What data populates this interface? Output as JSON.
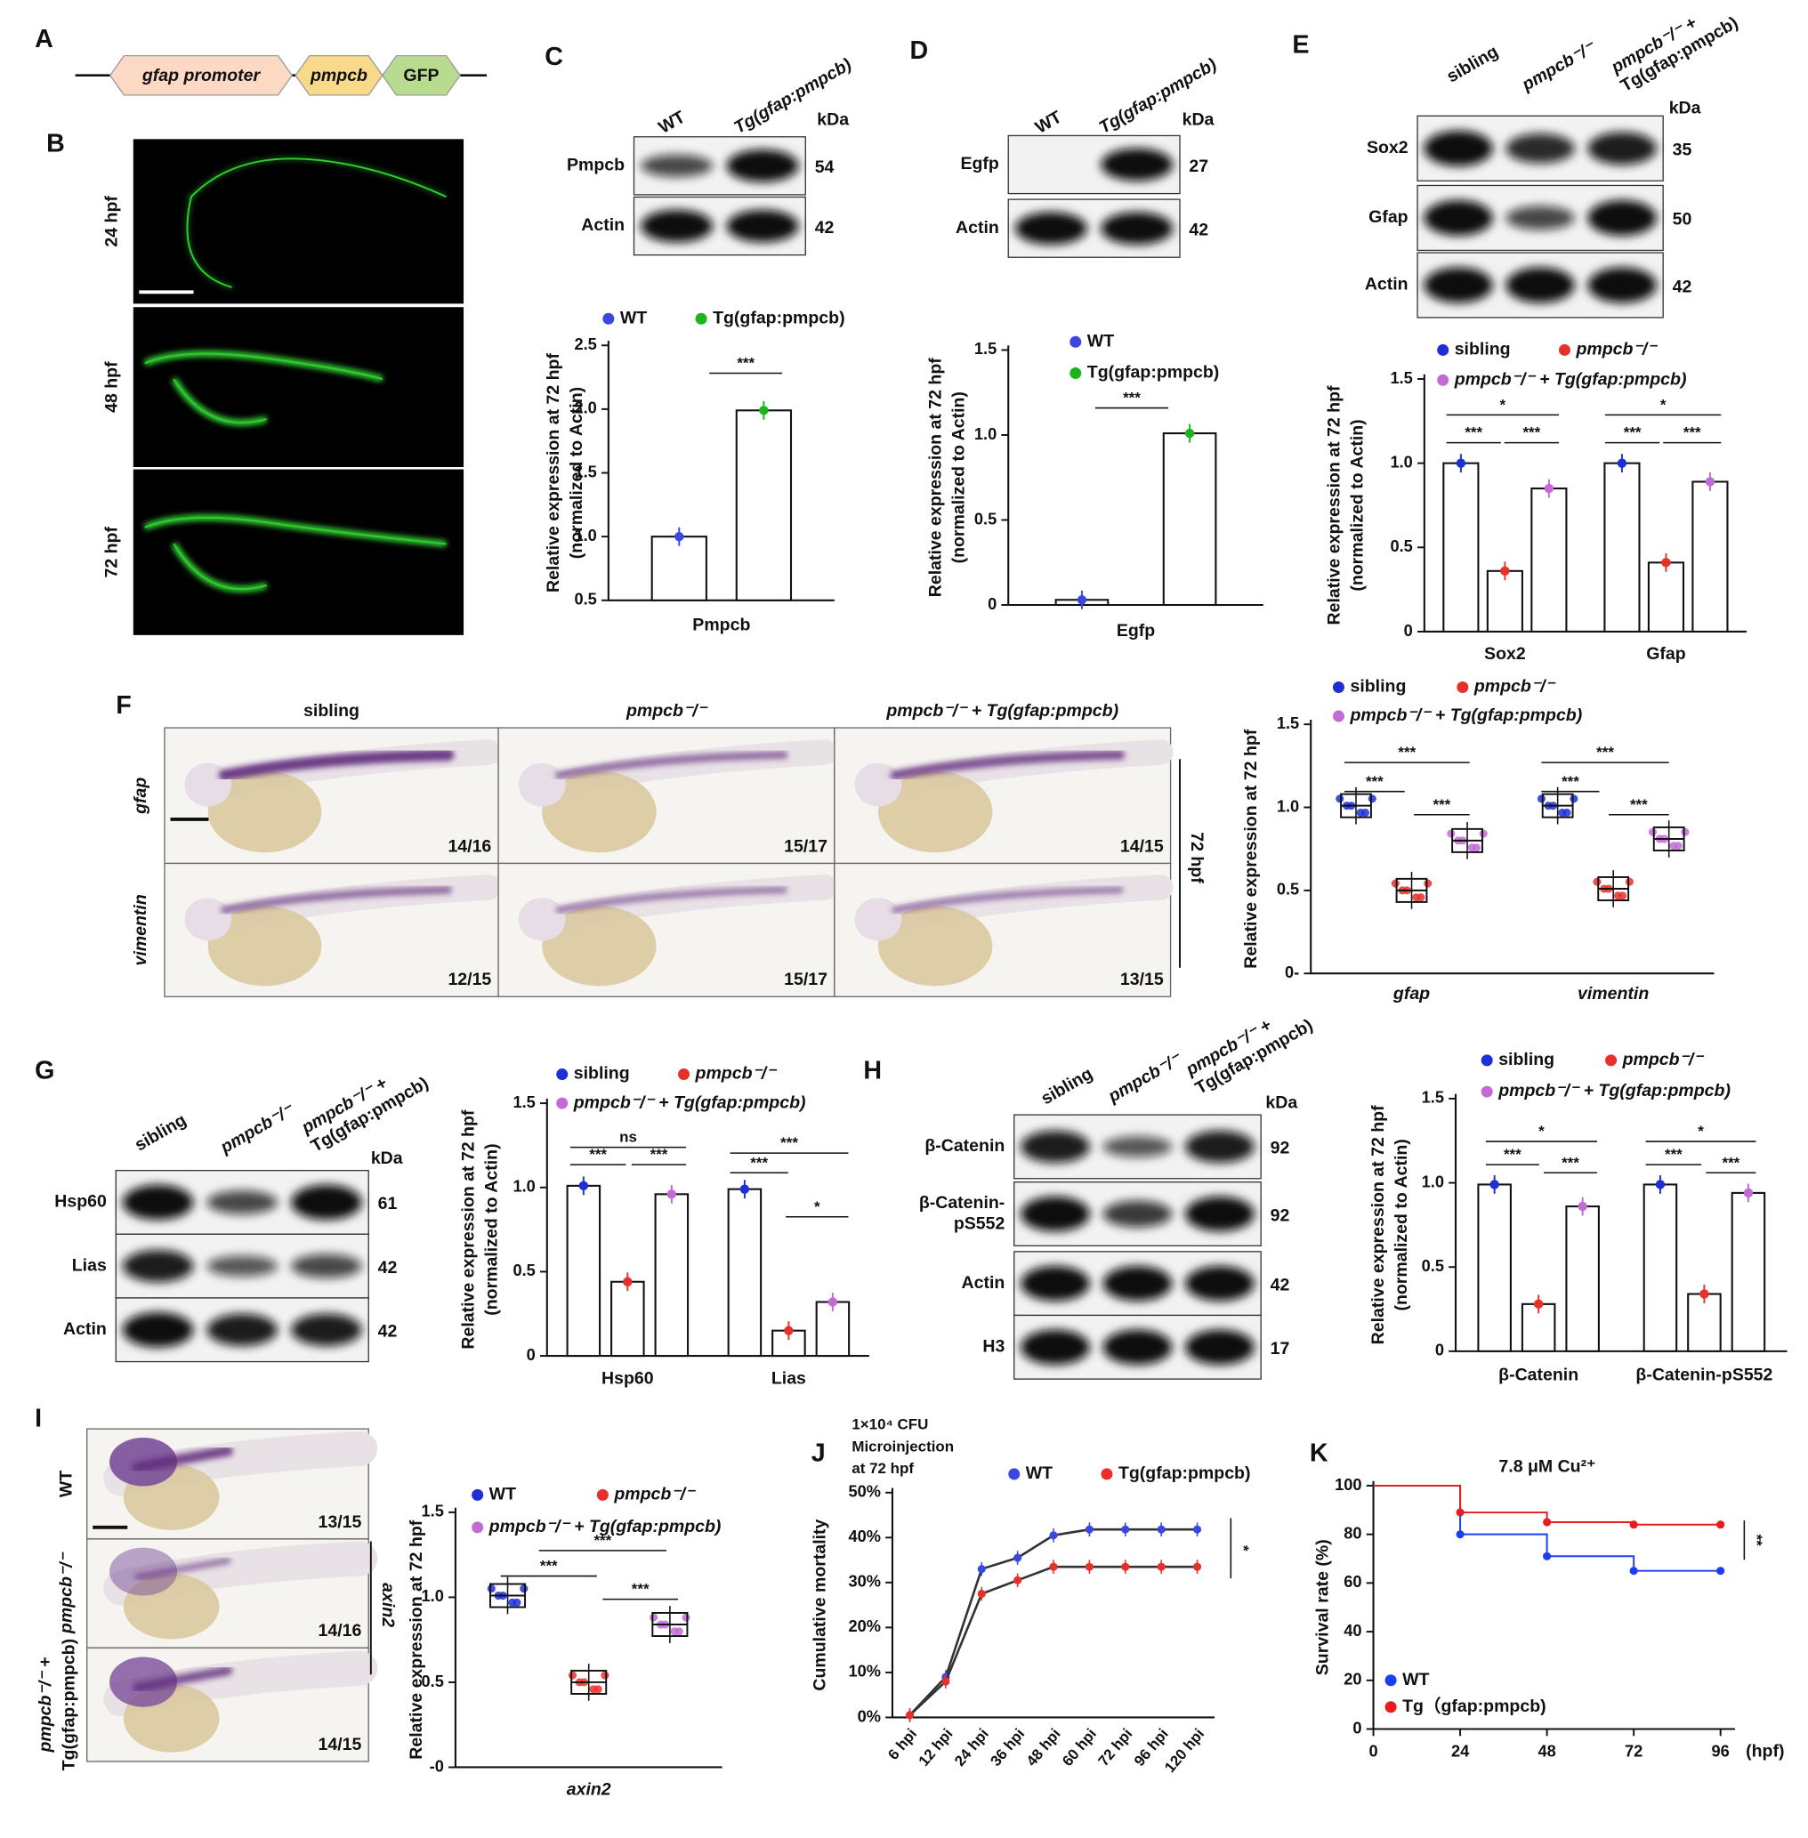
{
  "figure": {
    "panel_labels": [
      "A",
      "B",
      "C",
      "D",
      "E",
      "F",
      "G",
      "H",
      "I",
      "J",
      "K"
    ],
    "construct": [
      "gfap promoter",
      "pmpcb",
      "GFP"
    ],
    "fluorescence_rows": [
      "24 hpf",
      "48 hpf",
      "72 hpf"
    ],
    "blots": [
      {
        "lanes": [
          "WT",
          "Tg(gfap:pmpcb)"
        ],
        "unit": "kDa",
        "bands": [
          {
            "name": "Pmpcb",
            "kda": 54
          },
          {
            "name": "Actin",
            "kda": 42
          }
        ]
      },
      {
        "lanes": [
          "WT",
          "Tg(gfap:pmpcb)"
        ],
        "unit": "kDa",
        "bands": [
          {
            "name": "Egfp",
            "kda": 27
          },
          {
            "name": "Actin",
            "kda": 42
          }
        ]
      },
      {
        "lanes": [
          "sibling",
          "pmpcb⁻/⁻",
          [
            "pmpcb⁻/⁻ +",
            "Tg(gfap:pmpcb)"
          ]
        ],
        "unit": "kDa",
        "bands": [
          {
            "name": "Sox2",
            "kda": 35
          },
          {
            "name": "Gfap",
            "kda": 50
          },
          {
            "name": "Actin",
            "kda": 42
          }
        ]
      },
      {
        "lanes": [
          "sibling",
          "pmpcb⁻/⁻",
          [
            "pmpcb⁻/⁻ +",
            "Tg(gfap:pmpcb)"
          ]
        ],
        "unit": "kDa",
        "bands": [
          {
            "name": "Hsp60",
            "kda": 61
          },
          {
            "name": "Lias",
            "kda": 42
          },
          {
            "name": "Actin",
            "kda": 42
          }
        ]
      },
      {
        "lanes": [
          "sibling",
          "pmpcb⁻/⁻",
          [
            "pmpcb⁻/⁻ +",
            "Tg(gfap:pmpcb)"
          ]
        ],
        "unit": "kDa",
        "bands": [
          {
            "name": "β-Catenin",
            "kda": 92
          },
          {
            "name": [
              "β-Catenin-",
              "pS552"
            ],
            "kda": 92
          },
          {
            "name": "Actin",
            "kda": 42
          },
          {
            "name": "H3",
            "kda": 17
          }
        ]
      }
    ],
    "ish": [
      {
        "columns": [
          "sibling",
          "pmpcb⁻/⁻",
          "pmpcb⁻/⁻ + Tg(gfap:pmpcb)"
        ],
        "rows": [
          "gfap",
          "vimentin"
        ],
        "counts": [
          [
            "14/16",
            "15/17",
            "14/15"
          ],
          [
            "12/15",
            "15/17",
            "13/15"
          ]
        ],
        "stage": "72 hpf"
      },
      {
        "rows": [
          "WT",
          "pmpcb⁻/⁻",
          [
            "pmpcb⁻/⁻ +",
            "Tg(gfap:pmpcb)"
          ]
        ],
        "counts": [
          "13/15",
          "14/16",
          "14/15"
        ],
        "gene": "axin2"
      }
    ]
  },
  "chart_data": [
    {
      "type": "bar",
      "categories": [
        "Pmpcb"
      ],
      "series": [
        {
          "name": "WT",
          "color": "#3b48e0",
          "values": [
            1.0
          ]
        },
        {
          "name": "Tg(gfap:pmpcb)",
          "color": "#1bb51b",
          "values": [
            1.99
          ]
        }
      ],
      "ylabel": [
        "Relative expression at 72 hpf",
        "(normalized to Actin)"
      ],
      "ylim": [
        0.5,
        2.5
      ],
      "yticks": [
        0.5,
        {
          "value": 1,
          "label": "1.0"
        },
        1.5,
        {
          "value": 2,
          "label": "2.0"
        },
        2.5
      ],
      "annotations": [
        "***"
      ]
    },
    {
      "type": "bar",
      "categories": [
        "Egfp"
      ],
      "series": [
        {
          "name": "WT",
          "color": "#3b48e0",
          "values": [
            0.03
          ]
        },
        {
          "name": "Tg(gfap:pmpcb)",
          "color": "#1bb51b",
          "values": [
            1.01
          ]
        }
      ],
      "ylabel": [
        "Relative expression at 72 hpf",
        "(normalized to Actin)"
      ],
      "ylim": [
        0,
        1.5
      ],
      "yticks": [
        0,
        0.5,
        {
          "value": 1,
          "label": "1.0"
        },
        1.5
      ],
      "annotations": [
        "***"
      ]
    },
    {
      "type": "bar",
      "categories": [
        "Sox2",
        "Gfap"
      ],
      "series": [
        {
          "name": "sibling",
          "color": "#1f2fd6",
          "values": [
            1.0,
            1.0
          ]
        },
        {
          "name": "pmpcb⁻/⁻",
          "color": "#e8302a",
          "values": [
            0.36,
            0.41
          ]
        },
        {
          "name": "pmpcb⁻/⁻ + Tg(gfap:pmpcb)",
          "color": "#c36ad6",
          "values": [
            0.85,
            0.89
          ]
        }
      ],
      "ylabel": [
        "Relative expression at 72 hpf",
        "(normalized to Actin)"
      ],
      "ylim": [
        0,
        1.5
      ],
      "yticks": [
        0,
        0.5,
        {
          "value": 1,
          "label": "1.0"
        },
        1.5
      ],
      "annotations": [
        "*",
        "***",
        "***",
        "*",
        "***",
        "***"
      ]
    },
    {
      "type": "box",
      "categories": [
        "gfap",
        "vimentin"
      ],
      "series": [
        {
          "name": "sibling",
          "color": "#1f2fd6",
          "values": [
            1.01,
            1.01
          ]
        },
        {
          "name": "pmpcb⁻/⁻",
          "color": "#e8302a",
          "values": [
            0.5,
            0.51
          ]
        },
        {
          "name": "pmpcb⁻/⁻ + Tg(gfap:pmpcb)",
          "color": "#c36ad6",
          "values": [
            0.8,
            0.81
          ]
        }
      ],
      "ylabel": [
        "Relative expression at 72 hpf"
      ],
      "ylim": [
        0,
        1.5
      ],
      "yticks": [
        {
          "value": 0,
          "label": "0-"
        },
        0.5,
        {
          "value": 1,
          "label": "1.0"
        },
        1.5
      ],
      "annotations": [
        "***",
        "***",
        "***",
        "***",
        "***",
        "***"
      ]
    },
    {
      "type": "bar",
      "categories": [
        "Hsp60",
        "Lias"
      ],
      "series": [
        {
          "name": "sibling",
          "color": "#1f2fd6",
          "values": [
            1.01,
            0.99
          ]
        },
        {
          "name": "pmpcb⁻/⁻",
          "color": "#e8302a",
          "values": [
            0.44,
            0.15
          ]
        },
        {
          "name": "pmpcb⁻/⁻ + Tg(gfap:pmpcb)",
          "color": "#c36ad6",
          "values": [
            0.96,
            0.32
          ]
        }
      ],
      "ylabel": [
        "Relative expression at 72 hpf",
        "(normalized to Actin)"
      ],
      "ylim": [
        0,
        1.5
      ],
      "yticks": [
        0,
        0.5,
        {
          "value": 1,
          "label": "1.0"
        },
        1.5
      ],
      "annotations": [
        "ns",
        "***",
        "***",
        "***",
        "***",
        "*"
      ]
    },
    {
      "type": "bar",
      "categories": [
        "β-Catenin",
        "β-Catenin-pS552"
      ],
      "series": [
        {
          "name": "sibling",
          "color": "#1f2fd6",
          "values": [
            0.99,
            0.99
          ]
        },
        {
          "name": "pmpcb⁻/⁻",
          "color": "#e8302a",
          "values": [
            0.28,
            0.34
          ]
        },
        {
          "name": "pmpcb⁻/⁻ + Tg(gfap:pmpcb)",
          "color": "#c36ad6",
          "values": [
            0.86,
            0.94
          ]
        }
      ],
      "ylabel": [
        "Relative expression at 72 hpf",
        "(normalized to Actin)"
      ],
      "ylim": [
        0,
        1.5
      ],
      "yticks": [
        0,
        0.5,
        {
          "value": 1,
          "label": "1.0"
        },
        1.5
      ],
      "annotations": [
        "*",
        "***",
        "***",
        "*",
        "***",
        "***"
      ]
    },
    {
      "type": "box",
      "categories": [
        "axin2"
      ],
      "series": [
        {
          "name": "WT",
          "color": "#1f2fd6",
          "values": [
            1.01
          ]
        },
        {
          "name": "pmpcb⁻/⁻",
          "color": "#e8302a",
          "values": [
            0.5
          ]
        },
        {
          "name": "pmpcb⁻/⁻ + Tg(gfap:pmpcb)",
          "color": "#c36ad6",
          "values": [
            0.84
          ]
        }
      ],
      "ylabel": [
        "Relative expression at 72 hpf"
      ],
      "ylim": [
        0,
        1.5
      ],
      "yticks": [
        {
          "value": 0,
          "label": "-0"
        },
        0.5,
        {
          "value": 1,
          "label": "1.0"
        },
        1.5
      ],
      "annotations": [
        "***",
        "***",
        "***"
      ]
    },
    {
      "type": "line",
      "subtitle": [
        "1×10⁴ CFU",
        "Microinjection",
        "at 72 hpf"
      ],
      "categories": [
        "6 hpi",
        "12 hpi",
        "24 hpi",
        "36 hpi",
        "48 hpi",
        "60 hpi",
        "72 hpi",
        "96 hpi",
        "120 hpi"
      ],
      "series": [
        {
          "name": "WT",
          "color": "#3b48e0",
          "values": [
            0.5,
            9,
            33,
            35.5,
            40.5,
            41.8,
            41.8,
            41.8,
            41.8
          ]
        },
        {
          "name": "Tg(gfap:pmpcb)",
          "color": "#e8302a",
          "values": [
            0.5,
            8,
            27.5,
            30.5,
            33.5,
            33.5,
            33.5,
            33.5,
            33.5
          ]
        }
      ],
      "ylabel": "Cumulative mortality",
      "ylim": [
        0,
        50
      ],
      "yticks": [
        {
          "value": 0,
          "label": "0%"
        },
        {
          "value": 10,
          "label": "10%"
        },
        {
          "value": 20,
          "label": "20%"
        },
        {
          "value": 30,
          "label": "30%"
        },
        {
          "value": 40,
          "label": "40%"
        },
        {
          "value": 50,
          "label": "50%"
        }
      ],
      "annotations": [
        "*"
      ]
    },
    {
      "type": "step",
      "title": "7.8 μM Cu²⁺",
      "x": [
        0,
        24,
        48,
        72,
        96
      ],
      "series": [
        {
          "name": "WT",
          "color": "#1b3ef0",
          "values": [
            100,
            80,
            71,
            65,
            65
          ]
        },
        {
          "name": "Tg（gfap:pmpcb)",
          "color": "#e81c1c",
          "values": [
            100,
            89,
            85,
            84,
            84
          ]
        }
      ],
      "xlabel": "(hpf)",
      "ylabel": "Survival rate (%)",
      "xlim": [
        0,
        100
      ],
      "xticks": [
        0,
        24,
        48,
        72,
        96
      ],
      "ylim": [
        0,
        100
      ],
      "yticks": [
        0,
        20,
        40,
        60,
        80,
        100
      ],
      "annotations": [
        "**"
      ]
    }
  ]
}
